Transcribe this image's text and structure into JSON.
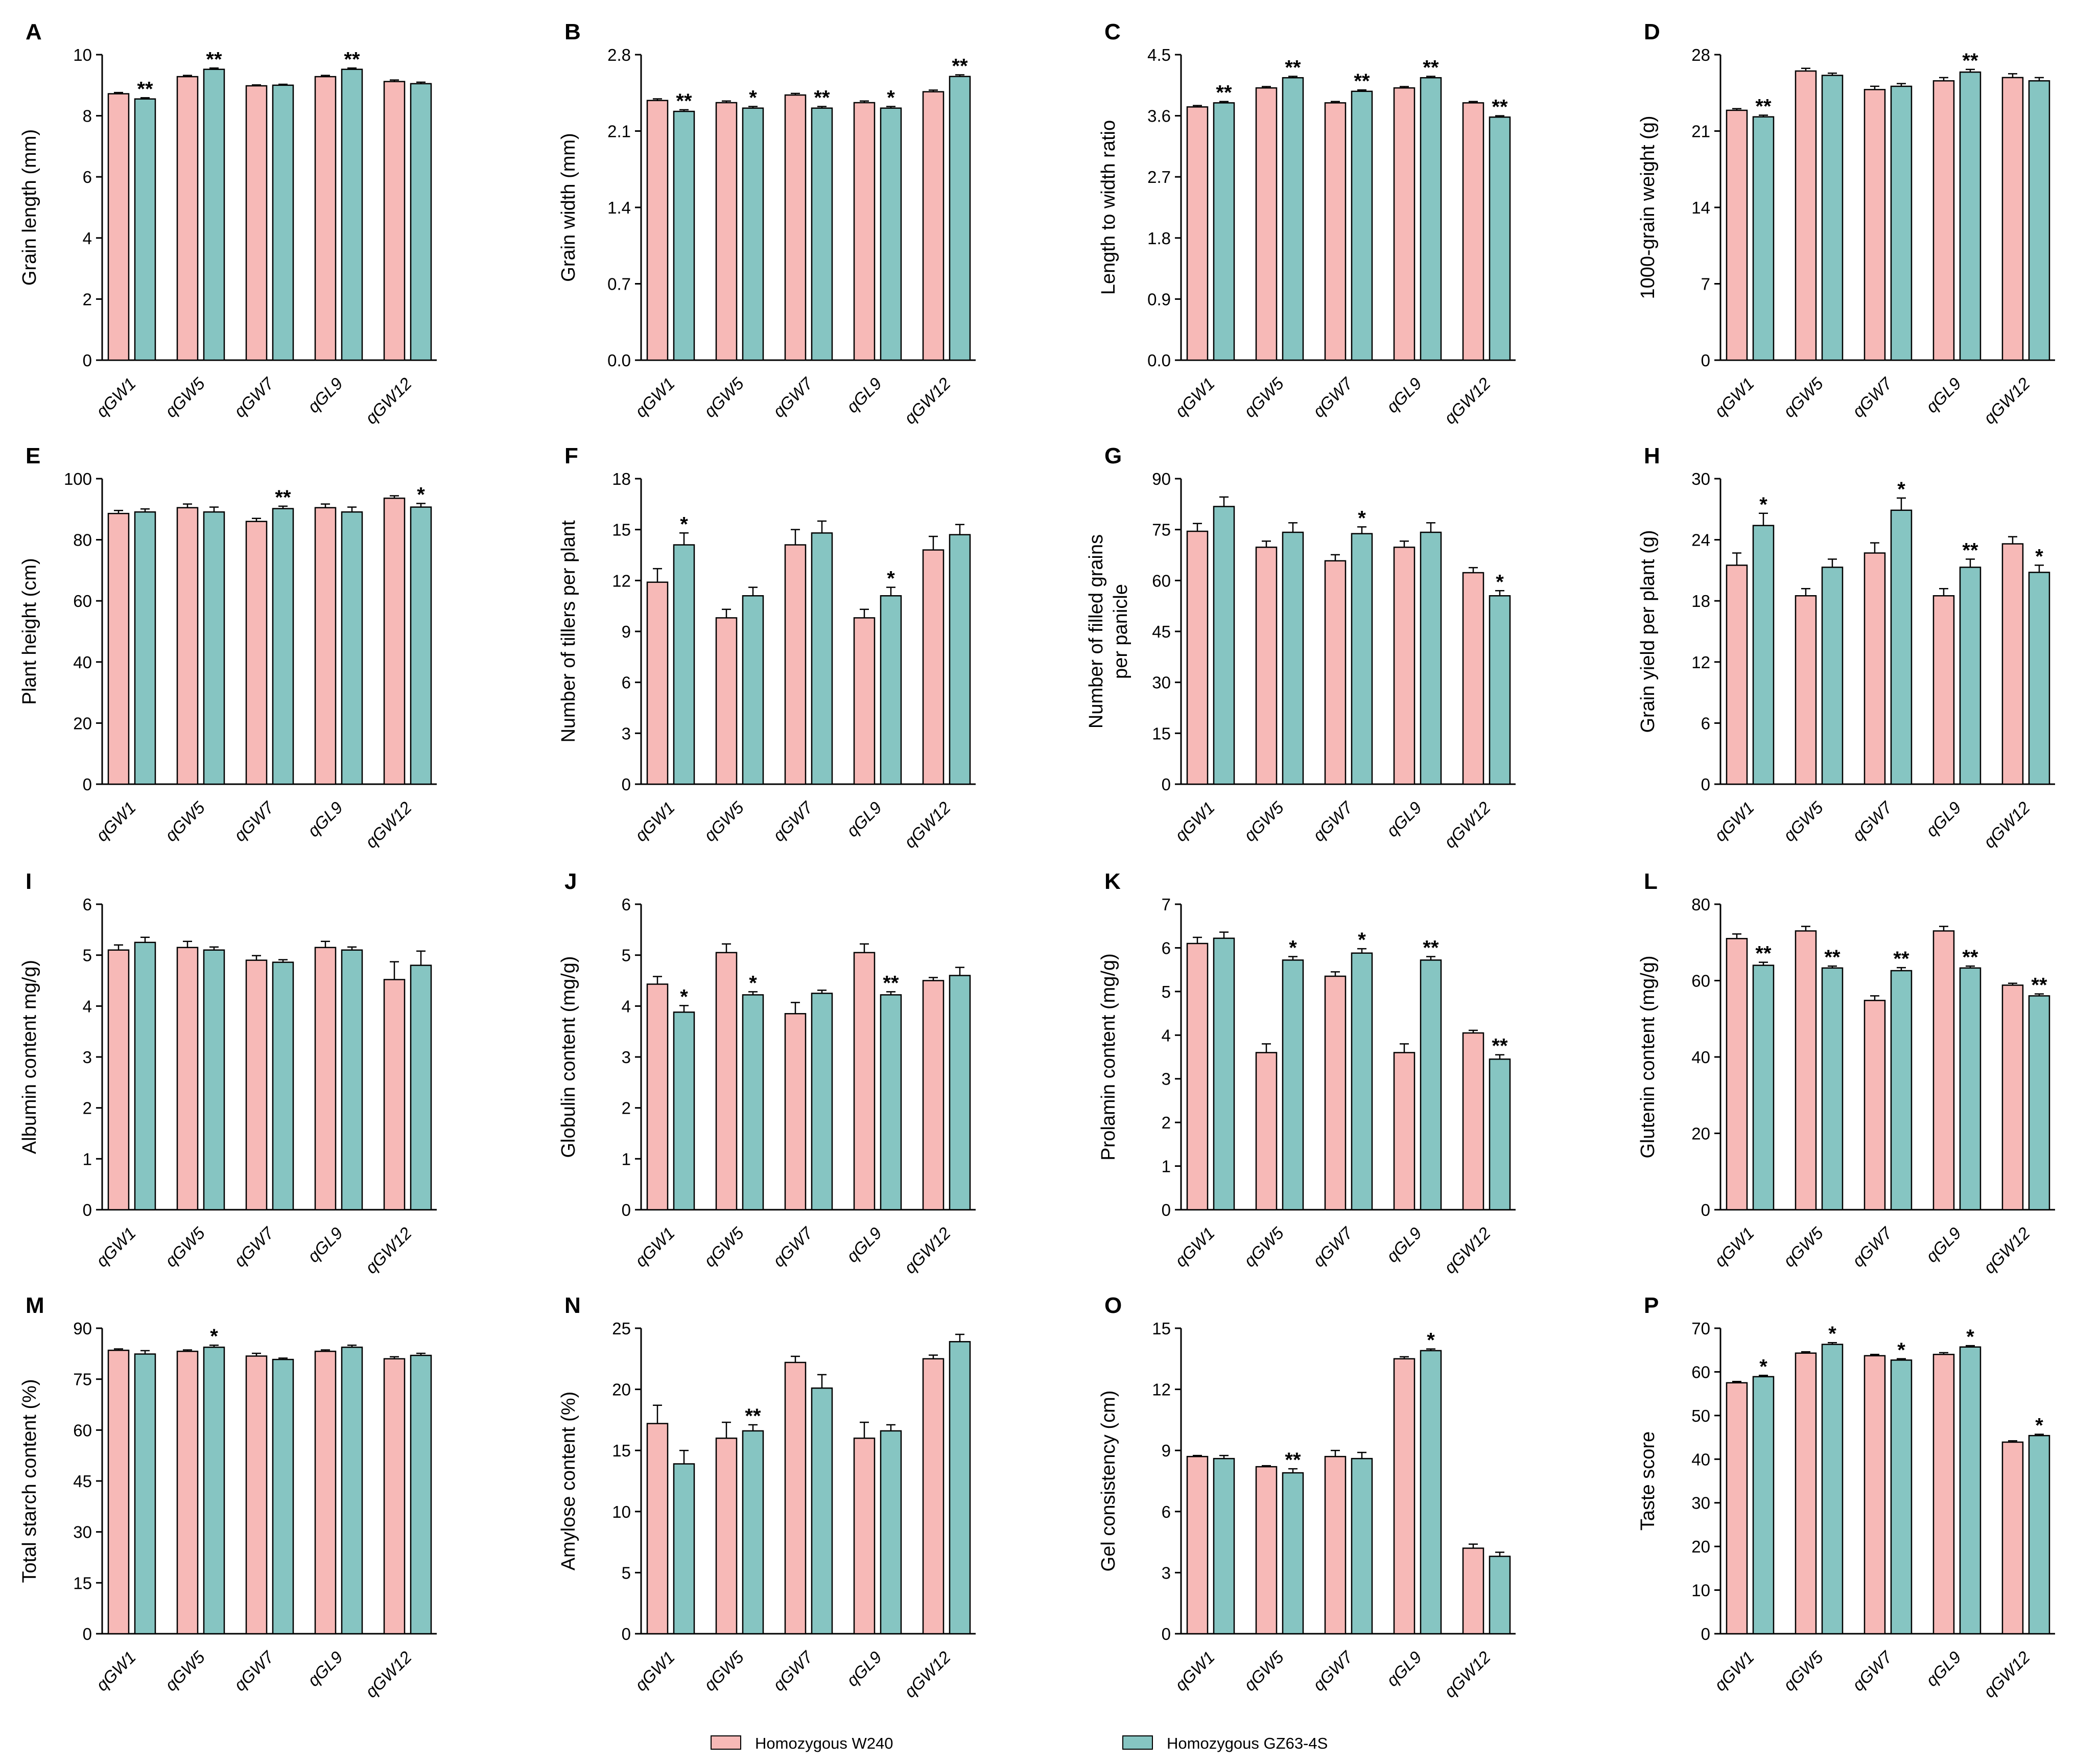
{
  "colors": {
    "w240": "#F7B9B7",
    "gz63": "#86C5C2",
    "axis": "#000000"
  },
  "legend": [
    {
      "label": "Homozygous W240",
      "color": "#F7B9B7"
    },
    {
      "label": "Homozygous GZ63-4S",
      "color": "#86C5C2"
    }
  ],
  "chart_data": [
    {
      "panel": "A",
      "type": "bar",
      "ylabel": [
        "Grain length (mm)"
      ],
      "ylim": [
        0,
        10
      ],
      "yticks": [
        "0",
        "2",
        "4",
        "6",
        "8",
        "10"
      ],
      "categories": [
        "qGW1",
        "qGW5",
        "qGW7",
        "qGL9",
        "qGW12"
      ],
      "series": [
        {
          "name": "Homozygous W240",
          "values": [
            8.72,
            9.28,
            8.98,
            9.28,
            9.12
          ],
          "errors": [
            0.04,
            0.04,
            0.03,
            0.04,
            0.05
          ]
        },
        {
          "name": "Homozygous GZ63-4S",
          "values": [
            8.55,
            9.52,
            9.0,
            9.52,
            9.05
          ],
          "errors": [
            0.04,
            0.04,
            0.03,
            0.04,
            0.05
          ]
        }
      ],
      "significance": [
        "**",
        "**",
        "",
        "**",
        ""
      ]
    },
    {
      "panel": "B",
      "type": "bar",
      "ylabel": [
        "Grain width (mm)"
      ],
      "ylim": [
        0,
        2.8
      ],
      "yticks": [
        "0.0",
        "0.7",
        "1.4",
        "2.1",
        "2.8"
      ],
      "categories": [
        "qGW1",
        "qGW5",
        "qGW7",
        "qGL9",
        "qGW12"
      ],
      "series": [
        {
          "name": "Homozygous W240",
          "values": [
            2.38,
            2.36,
            2.43,
            2.36,
            2.46
          ],
          "errors": [
            0.015,
            0.015,
            0.015,
            0.015,
            0.015
          ]
        },
        {
          "name": "Homozygous GZ63-4S",
          "values": [
            2.28,
            2.31,
            2.31,
            2.31,
            2.6
          ],
          "errors": [
            0.015,
            0.015,
            0.015,
            0.015,
            0.015
          ]
        }
      ],
      "significance": [
        "**",
        "*",
        "**",
        "*",
        "**"
      ]
    },
    {
      "panel": "C",
      "type": "bar",
      "ylabel": [
        "Length to width ratio"
      ],
      "ylim": [
        0,
        4.5
      ],
      "yticks": [
        "0.0",
        "0.9",
        "1.8",
        "2.7",
        "3.6",
        "4.5"
      ],
      "categories": [
        "qGW1",
        "qGW5",
        "qGW7",
        "qGL9",
        "qGW12"
      ],
      "series": [
        {
          "name": "Homozygous W240",
          "values": [
            3.73,
            4.01,
            3.79,
            4.01,
            3.79
          ],
          "errors": [
            0.02,
            0.02,
            0.02,
            0.02,
            0.02
          ]
        },
        {
          "name": "Homozygous GZ63-4S",
          "values": [
            3.79,
            4.16,
            3.96,
            4.16,
            3.58
          ],
          "errors": [
            0.02,
            0.02,
            0.02,
            0.02,
            0.02
          ]
        }
      ],
      "significance": [
        "**",
        "**",
        "**",
        "**",
        "**"
      ]
    },
    {
      "panel": "D",
      "type": "bar",
      "ylabel": [
        "1000-grain weight (g)"
      ],
      "ylim": [
        0,
        28
      ],
      "yticks": [
        "0",
        "7",
        "14",
        "21",
        "28"
      ],
      "categories": [
        "qGW1",
        "qGW5",
        "qGW7",
        "qGL9",
        "qGW12"
      ],
      "series": [
        {
          "name": "Homozygous W240",
          "values": [
            22.9,
            26.5,
            24.8,
            25.6,
            25.9
          ],
          "errors": [
            0.15,
            0.25,
            0.3,
            0.3,
            0.35
          ]
        },
        {
          "name": "Homozygous GZ63-4S",
          "values": [
            22.3,
            26.1,
            25.1,
            26.4,
            25.6
          ],
          "errors": [
            0.15,
            0.2,
            0.25,
            0.25,
            0.3
          ]
        }
      ],
      "significance": [
        "**",
        "",
        "",
        "**",
        ""
      ]
    },
    {
      "panel": "E",
      "type": "bar",
      "ylabel": [
        "Plant height (cm)"
      ],
      "ylim": [
        0,
        100
      ],
      "yticks": [
        "0",
        "20",
        "40",
        "60",
        "80",
        "100"
      ],
      "categories": [
        "qGW1",
        "qGW5",
        "qGW7",
        "qGL9",
        "qGW12"
      ],
      "series": [
        {
          "name": "Homozygous W240",
          "values": [
            88.6,
            90.5,
            86.0,
            90.5,
            93.6
          ],
          "errors": [
            1.0,
            1.2,
            1.0,
            1.2,
            0.8
          ]
        },
        {
          "name": "Homozygous GZ63-4S",
          "values": [
            89.1,
            89.1,
            90.2,
            89.1,
            90.7
          ],
          "errors": [
            1.0,
            1.6,
            0.8,
            1.6,
            1.2
          ]
        }
      ],
      "significance": [
        "",
        "",
        "**",
        "",
        "*"
      ]
    },
    {
      "panel": "F",
      "type": "bar",
      "ylabel": [
        "Number of tillers per plant"
      ],
      "ylim": [
        0,
        18
      ],
      "yticks": [
        "0",
        "3",
        "6",
        "9",
        "12",
        "15",
        "18"
      ],
      "categories": [
        "qGW1",
        "qGW5",
        "qGW7",
        "qGL9",
        "qGW12"
      ],
      "series": [
        {
          "name": "Homozygous W240",
          "values": [
            11.9,
            9.8,
            14.1,
            9.8,
            13.8
          ],
          "errors": [
            0.8,
            0.5,
            0.9,
            0.5,
            0.8
          ]
        },
        {
          "name": "Homozygous GZ63-4S",
          "values": [
            14.1,
            11.1,
            14.8,
            11.1,
            14.7
          ],
          "errors": [
            0.7,
            0.5,
            0.7,
            0.5,
            0.6
          ]
        }
      ],
      "significance": [
        "*",
        "",
        "",
        "*",
        ""
      ]
    },
    {
      "panel": "G",
      "type": "bar",
      "ylabel": [
        "Number of filled grains",
        "per panicle"
      ],
      "ylim": [
        0,
        90
      ],
      "yticks": [
        "0",
        "15",
        "30",
        "45",
        "60",
        "75",
        "90"
      ],
      "categories": [
        "qGW1",
        "qGW5",
        "qGW7",
        "qGL9",
        "qGW12"
      ],
      "series": [
        {
          "name": "Homozygous W240",
          "values": [
            74.5,
            69.8,
            65.8,
            69.8,
            62.3
          ],
          "errors": [
            2.3,
            1.8,
            1.8,
            1.8,
            1.5
          ]
        },
        {
          "name": "Homozygous GZ63-4S",
          "values": [
            81.8,
            74.2,
            73.8,
            74.2,
            55.5
          ],
          "errors": [
            2.8,
            2.8,
            2.0,
            2.8,
            1.5
          ]
        }
      ],
      "significance": [
        "",
        "",
        "*",
        "",
        "*"
      ]
    },
    {
      "panel": "H",
      "type": "bar",
      "ylabel": [
        "Grain yield per plant (g)"
      ],
      "ylim": [
        0,
        30
      ],
      "yticks": [
        "0",
        "6",
        "12",
        "18",
        "24",
        "30"
      ],
      "categories": [
        "qGW1",
        "qGW5",
        "qGW7",
        "qGL9",
        "qGW12"
      ],
      "series": [
        {
          "name": "Homozygous W240",
          "values": [
            21.5,
            18.5,
            22.7,
            18.5,
            23.6
          ],
          "errors": [
            1.2,
            0.7,
            1.0,
            0.7,
            0.7
          ]
        },
        {
          "name": "Homozygous GZ63-4S",
          "values": [
            25.4,
            21.3,
            26.9,
            21.3,
            20.8
          ],
          "errors": [
            1.2,
            0.8,
            1.2,
            0.8,
            0.7
          ]
        }
      ],
      "significance": [
        "*",
        "",
        "*",
        "**",
        "*"
      ]
    },
    {
      "panel": "I",
      "type": "bar",
      "ylabel": [
        "Albumin content mg/g)"
      ],
      "ylim": [
        0,
        6
      ],
      "yticks": [
        "0",
        "1",
        "2",
        "3",
        "4",
        "5",
        "6"
      ],
      "categories": [
        "qGW1",
        "qGW5",
        "qGW7",
        "qGL9",
        "qGW12"
      ],
      "series": [
        {
          "name": "Homozygous W240",
          "values": [
            5.1,
            5.15,
            4.9,
            5.15,
            4.52
          ],
          "errors": [
            0.1,
            0.12,
            0.09,
            0.12,
            0.35
          ]
        },
        {
          "name": "Homozygous GZ63-4S",
          "values": [
            5.25,
            5.1,
            4.86,
            5.1,
            4.8
          ],
          "errors": [
            0.1,
            0.06,
            0.05,
            0.06,
            0.28
          ]
        }
      ],
      "significance": [
        "",
        "",
        "",
        "",
        ""
      ]
    },
    {
      "panel": "J",
      "type": "bar",
      "ylabel": [
        "Globulin content (mg/g)"
      ],
      "ylim": [
        0,
        6
      ],
      "yticks": [
        "0",
        "1",
        "2",
        "3",
        "4",
        "5",
        "6"
      ],
      "categories": [
        "qGW1",
        "qGW5",
        "qGW7",
        "qGL9",
        "qGW12"
      ],
      "series": [
        {
          "name": "Homozygous W240",
          "values": [
            4.43,
            5.05,
            3.85,
            5.05,
            4.5
          ],
          "errors": [
            0.15,
            0.17,
            0.22,
            0.17,
            0.06
          ]
        },
        {
          "name": "Homozygous GZ63-4S",
          "values": [
            3.88,
            4.22,
            4.25,
            4.22,
            4.6
          ],
          "errors": [
            0.13,
            0.06,
            0.06,
            0.06,
            0.16
          ]
        }
      ],
      "significance": [
        "*",
        "*",
        "",
        "**",
        ""
      ]
    },
    {
      "panel": "K",
      "type": "bar",
      "ylabel": [
        "Prolamin content (mg/g)"
      ],
      "ylim": [
        0,
        7
      ],
      "yticks": [
        "0",
        "1",
        "2",
        "3",
        "4",
        "5",
        "6",
        "7"
      ],
      "categories": [
        "qGW1",
        "qGW5",
        "qGW7",
        "qGL9",
        "qGW12"
      ],
      "series": [
        {
          "name": "Homozygous W240",
          "values": [
            6.1,
            3.6,
            5.35,
            3.6,
            4.05
          ],
          "errors": [
            0.14,
            0.2,
            0.1,
            0.2,
            0.06
          ]
        },
        {
          "name": "Homozygous GZ63-4S",
          "values": [
            6.22,
            5.72,
            5.88,
            5.72,
            3.45
          ],
          "errors": [
            0.14,
            0.08,
            0.1,
            0.08,
            0.1
          ]
        }
      ],
      "significance": [
        "",
        "*",
        "*",
        "**",
        "**"
      ]
    },
    {
      "panel": "L",
      "type": "bar",
      "ylabel": [
        "Glutenin content (mg/g)"
      ],
      "ylim": [
        0,
        80
      ],
      "yticks": [
        "0",
        "20",
        "40",
        "60",
        "80"
      ],
      "categories": [
        "qGW1",
        "qGW5",
        "qGW7",
        "qGL9",
        "qGW12"
      ],
      "series": [
        {
          "name": "Homozygous W240",
          "values": [
            71.0,
            73.0,
            54.8,
            73.0,
            58.8
          ],
          "errors": [
            1.2,
            1.2,
            1.2,
            1.2,
            0.5
          ]
        },
        {
          "name": "Homozygous GZ63-4S",
          "values": [
            64.0,
            63.3,
            62.6,
            63.3,
            56.0
          ],
          "errors": [
            0.8,
            0.5,
            0.8,
            0.5,
            0.5
          ]
        }
      ],
      "significance": [
        "**",
        "**",
        "**",
        "**",
        "**"
      ]
    },
    {
      "panel": "M",
      "type": "bar",
      "ylabel": [
        "Total starch content (%)"
      ],
      "ylim": [
        0,
        90
      ],
      "yticks": [
        "0",
        "15",
        "30",
        "45",
        "60",
        "75",
        "90"
      ],
      "categories": [
        "qGW1",
        "qGW5",
        "qGW7",
        "qGL9",
        "qGW12"
      ],
      "series": [
        {
          "name": "Homozygous W240",
          "values": [
            83.5,
            83.2,
            81.8,
            83.2,
            81.0
          ],
          "errors": [
            0.4,
            0.4,
            0.8,
            0.4,
            0.6
          ]
        },
        {
          "name": "Homozygous GZ63-4S",
          "values": [
            82.4,
            84.4,
            80.8,
            84.4,
            82.0
          ],
          "errors": [
            1.0,
            0.6,
            0.4,
            0.6,
            0.6
          ]
        }
      ],
      "significance": [
        "",
        "*",
        "",
        "",
        ""
      ]
    },
    {
      "panel": "N",
      "type": "bar",
      "ylabel": [
        "Amylose content (%)"
      ],
      "ylim": [
        0,
        25
      ],
      "yticks": [
        "0",
        "5",
        "10",
        "15",
        "20",
        "25"
      ],
      "categories": [
        "qGW1",
        "qGW5",
        "qGW7",
        "qGL9",
        "qGW12"
      ],
      "series": [
        {
          "name": "Homozygous W240",
          "values": [
            17.2,
            16.0,
            22.2,
            16.0,
            22.5
          ],
          "errors": [
            1.5,
            1.3,
            0.5,
            1.3,
            0.3
          ]
        },
        {
          "name": "Homozygous GZ63-4S",
          "values": [
            13.9,
            16.6,
            20.1,
            16.6,
            23.9
          ],
          "errors": [
            1.1,
            0.5,
            1.1,
            0.5,
            0.6
          ]
        }
      ],
      "significance": [
        "",
        "**",
        "",
        "",
        ""
      ]
    },
    {
      "panel": "O",
      "type": "bar",
      "ylabel": [
        "Gel consistency (cm)"
      ],
      "ylim": [
        0,
        15
      ],
      "yticks": [
        "0",
        "3",
        "6",
        "9",
        "12",
        "15"
      ],
      "categories": [
        "qGW1",
        "qGW5",
        "qGW7",
        "qGL9",
        "qGW12"
      ],
      "series": [
        {
          "name": "Homozygous W240",
          "values": [
            8.7,
            8.2,
            8.7,
            13.5,
            4.2
          ],
          "errors": [
            0.05,
            0.05,
            0.3,
            0.1,
            0.2
          ]
        },
        {
          "name": "Homozygous GZ63-4S",
          "values": [
            8.6,
            7.9,
            8.6,
            13.9,
            3.8
          ],
          "errors": [
            0.15,
            0.2,
            0.3,
            0.08,
            0.2
          ]
        }
      ],
      "significance": [
        "",
        "**",
        "",
        "*",
        ""
      ]
    },
    {
      "panel": "P",
      "type": "bar",
      "ylabel": [
        "Taste score"
      ],
      "ylim": [
        0,
        70
      ],
      "yticks": [
        "0",
        "10",
        "20",
        "30",
        "40",
        "50",
        "60",
        "70"
      ],
      "categories": [
        "qGW1",
        "qGW5",
        "qGW7",
        "qGL9",
        "qGW12"
      ],
      "series": [
        {
          "name": "Homozygous W240",
          "values": [
            57.5,
            64.3,
            63.7,
            64.0,
            43.9
          ],
          "errors": [
            0.3,
            0.3,
            0.3,
            0.4,
            0.3
          ]
        },
        {
          "name": "Homozygous GZ63-4S",
          "values": [
            58.9,
            66.3,
            62.7,
            65.7,
            45.4
          ],
          "errors": [
            0.3,
            0.4,
            0.3,
            0.3,
            0.3
          ]
        }
      ],
      "significance": [
        "*",
        "*",
        "*",
        "*",
        "*"
      ]
    }
  ]
}
